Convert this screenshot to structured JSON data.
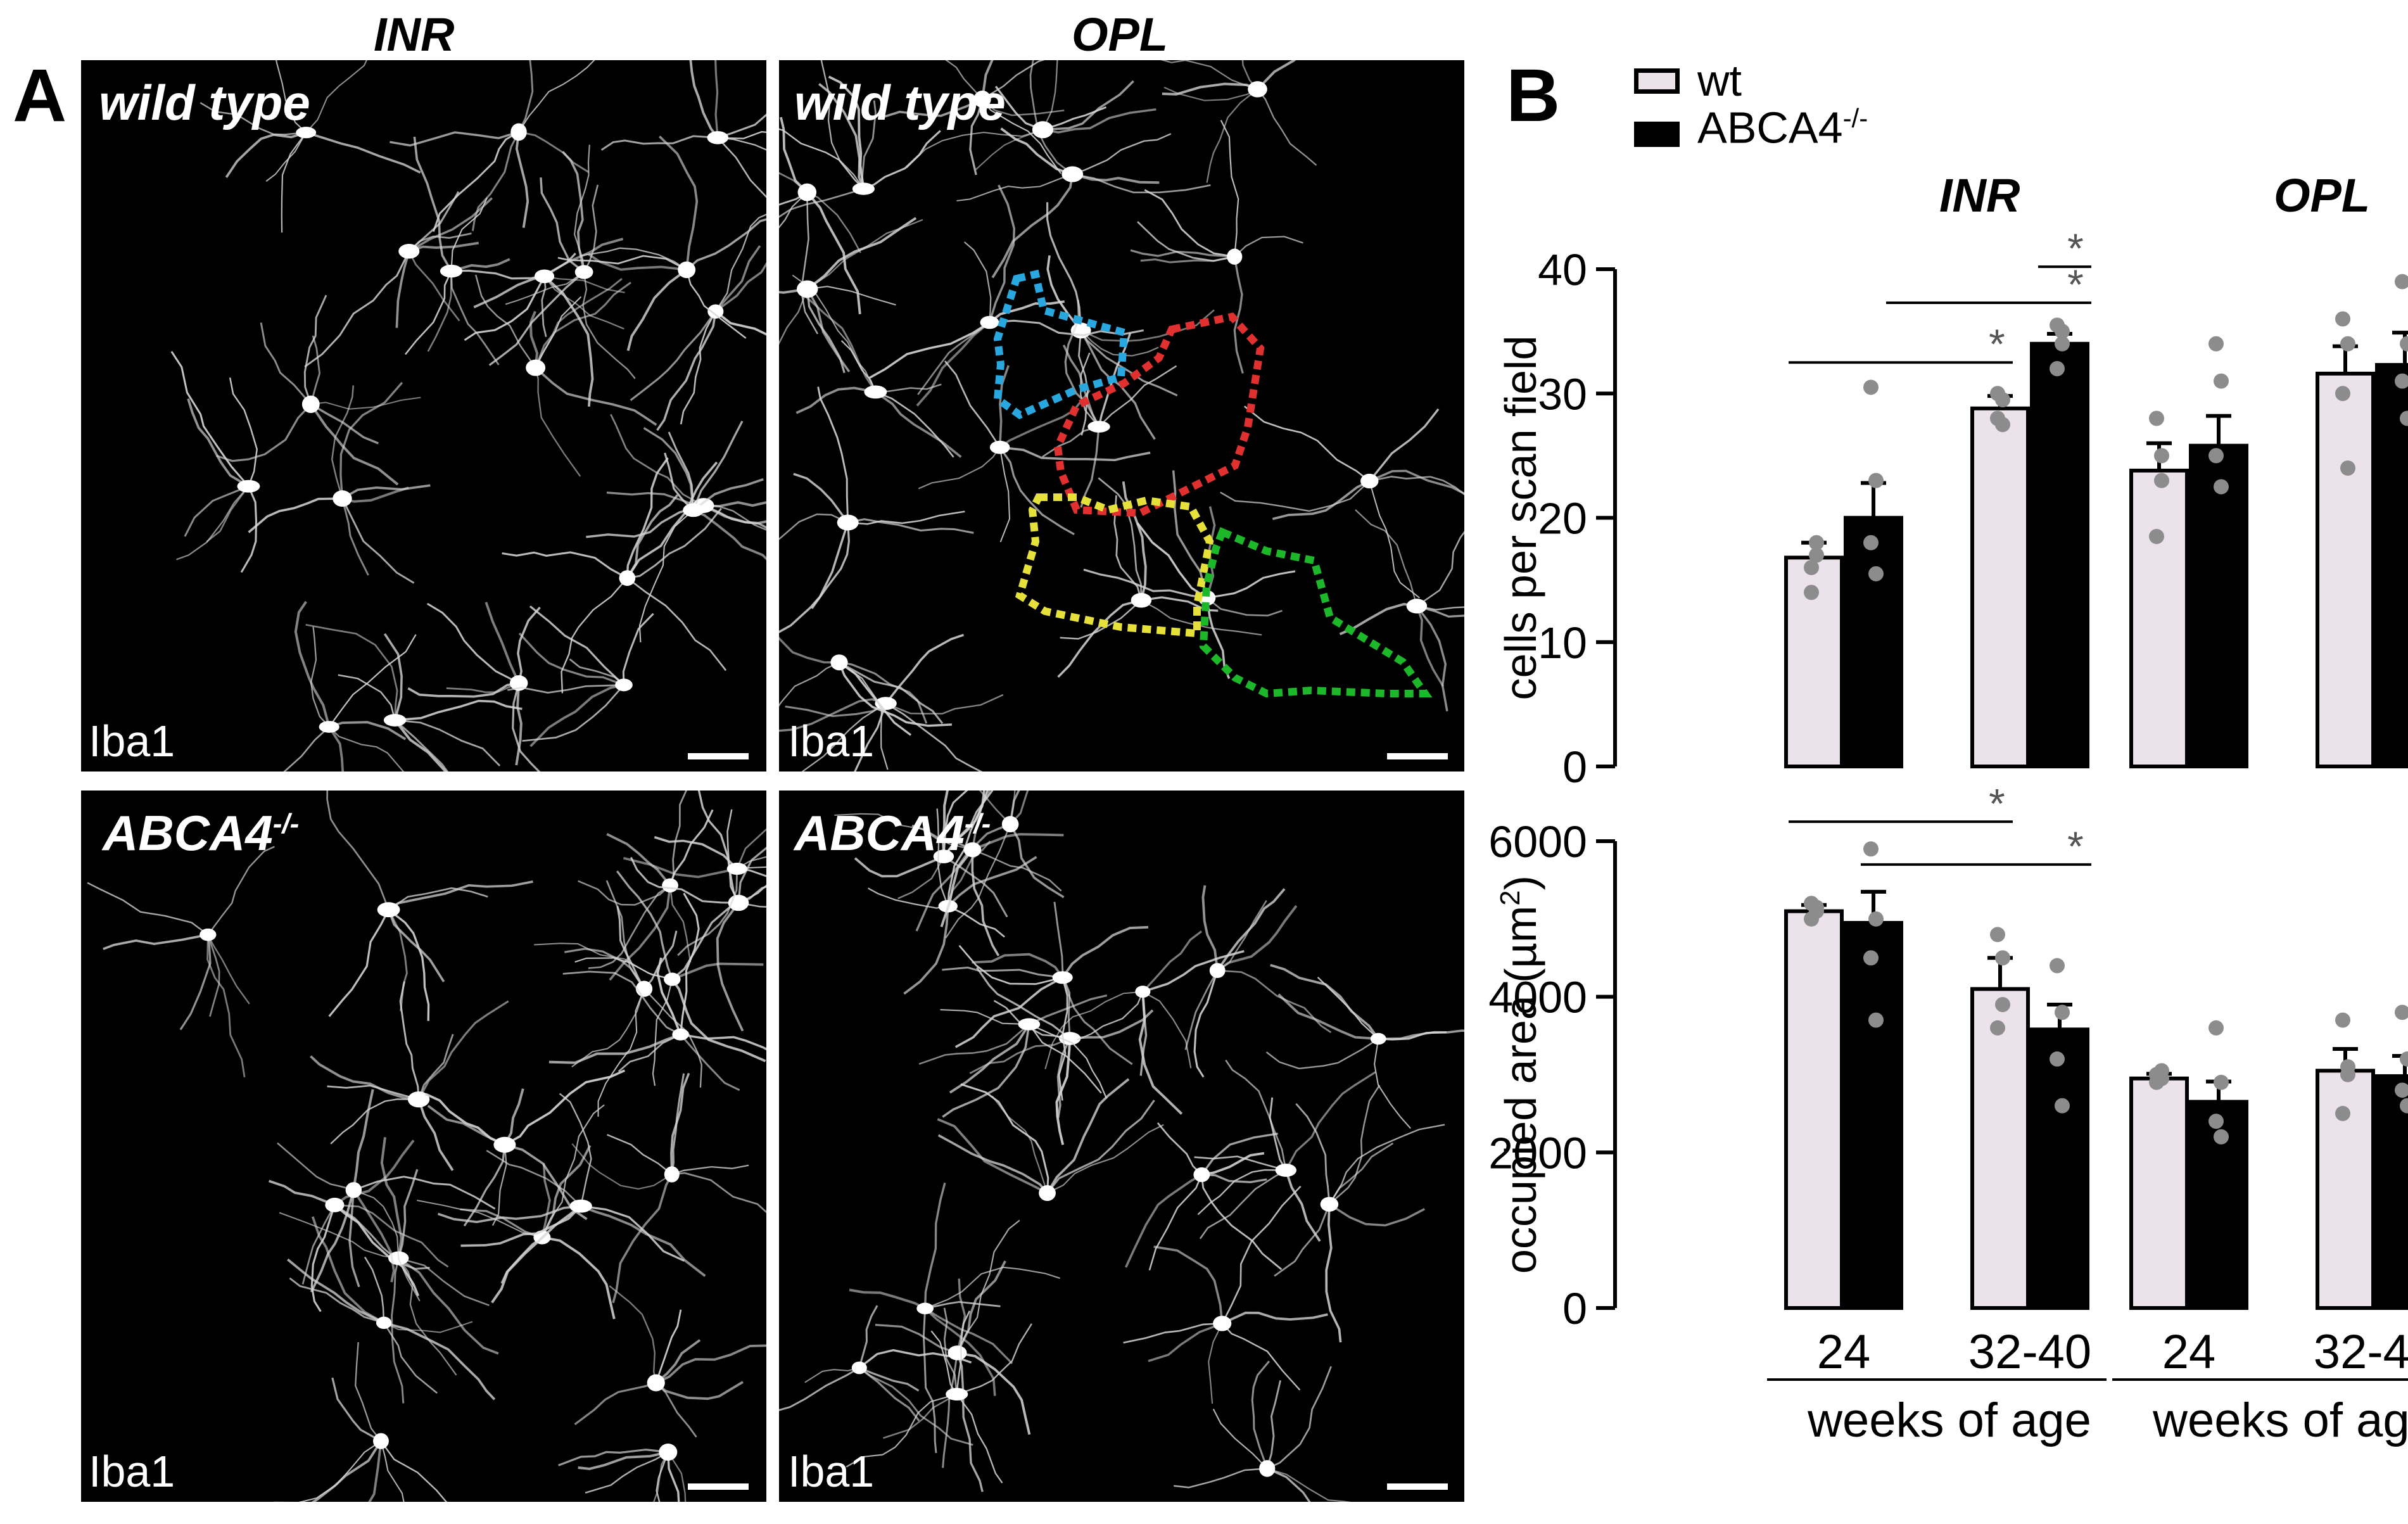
{
  "panel_a": {
    "letter": "A",
    "col_titles": [
      "INR",
      "OPL"
    ],
    "tiles": [
      {
        "label": "wild type",
        "stain": "Iba1"
      },
      {
        "label": "wild type",
        "stain": "Iba1"
      },
      {
        "label": "ABCA4",
        "sup": "-/-",
        "stain": "Iba1"
      },
      {
        "label": "ABCA4",
        "sup": "-/-",
        "stain": "Iba1"
      }
    ]
  },
  "panel_b": {
    "letter": "B",
    "legend": [
      {
        "label": "wt",
        "sup": "",
        "color": "#ece3ea"
      },
      {
        "label": "ABCA4",
        "sup": "-/-",
        "color": "#000000"
      }
    ],
    "group_titles": [
      "INR",
      "OPL"
    ],
    "x_tick_labels": [
      "24",
      "32-40"
    ],
    "xlabel": "weeks of age"
  },
  "chart_data": [
    {
      "type": "bar",
      "ylabel": "cells per scan field",
      "ylim": [
        0,
        40
      ],
      "yticks": [
        0,
        10,
        20,
        30,
        40
      ],
      "groups": [
        "INR",
        "OPL"
      ],
      "categories": [
        "24",
        "32-40"
      ],
      "series": [
        {
          "name": "wt",
          "color": "#ece3ea",
          "values": {
            "INR": [
              16.8,
              28.8
            ],
            "OPL": [
              23.8,
              31.6
            ]
          },
          "sem": {
            "INR": [
              1.2,
              1.0
            ],
            "OPL": [
              2.2,
              2.2
            ]
          },
          "points": {
            "INR": [
              [
                16,
                18,
                14,
                17
              ],
              [
                30,
                27.5,
                28,
                29.5
              ]
            ],
            "OPL": [
              [
                28,
                25,
                18.5,
                23
              ],
              [
                36,
                34,
                30,
                24
              ]
            ]
          }
        },
        {
          "name": "ABCA4",
          "color": "#000000",
          "values": {
            "INR": [
              20,
              34
            ],
            "OPL": [
              25.8,
              32.3
            ]
          },
          "sem": {
            "INR": [
              2.8,
              0.8
            ],
            "OPL": [
              2.4,
              2.6
            ]
          },
          "points": {
            "INR": [
              [
                30.5,
                23,
                18,
                15.5
              ],
              [
                35.5,
                35,
                32,
                34
              ]
            ],
            "OPL": [
              [
                34,
                31,
                25,
                22.5
              ],
              [
                39,
                34,
                31,
                28
              ]
            ]
          }
        }
      ],
      "significance": [
        {
          "label": "*",
          "from": "INR wt 24",
          "to": "INR wt 32-40"
        },
        {
          "label": "*",
          "from": "INR ABCA4 24",
          "to": "INR ABCA4 32-40"
        },
        {
          "label": "*",
          "from": "INR wt 32-40",
          "to": "INR ABCA4 32-40"
        }
      ]
    },
    {
      "type": "bar",
      "ylabel": "occupied area (µm",
      "ylabel_sup": "2",
      "ylabel_end": ")",
      "ylim": [
        0,
        6000
      ],
      "yticks": [
        0,
        2000,
        4000,
        6000
      ],
      "groups": [
        "INR",
        "OPL"
      ],
      "categories": [
        "24",
        "32-40"
      ],
      "xlabel": "weeks of age",
      "series": [
        {
          "name": "wt",
          "color": "#ece3ea",
          "values": {
            "INR": [
              5100,
              4100
            ],
            "OPL": [
              2950,
              3050
            ]
          },
          "sem": {
            "INR": [
              80,
              400
            ],
            "OPL": [
              60,
              280
            ]
          },
          "points": {
            "INR": [
              [
                5200,
                5100,
                5000,
                5150
              ],
              [
                4800,
                4500,
                3600,
                3900
              ]
            ],
            "OPL": [
              [
                3000,
                2950,
                2900,
                3050
              ],
              [
                3700,
                3000,
                2500,
                3100
              ]
            ]
          }
        },
        {
          "name": "ABCA4",
          "color": "#000000",
          "values": {
            "INR": [
              4950,
              3580
            ],
            "OPL": [
              2650,
              2980
            ]
          },
          "sem": {
            "INR": [
              400,
              320
            ],
            "OPL": [
              260,
              260
            ]
          },
          "points": {
            "INR": [
              [
                5900,
                5000,
                4500,
                3700
              ],
              [
                4400,
                3800,
                3200,
                2600
              ]
            ],
            "OPL": [
              [
                3600,
                2900,
                2400,
                2200
              ],
              [
                3800,
                3200,
                2800,
                2600
              ]
            ]
          }
        }
      ],
      "significance": [
        {
          "label": "*",
          "from": "INR wt 24",
          "to": "INR wt 32-40"
        },
        {
          "label": "*",
          "from": "INR ABCA4 24",
          "to": "INR ABCA4 32-40"
        }
      ]
    }
  ]
}
